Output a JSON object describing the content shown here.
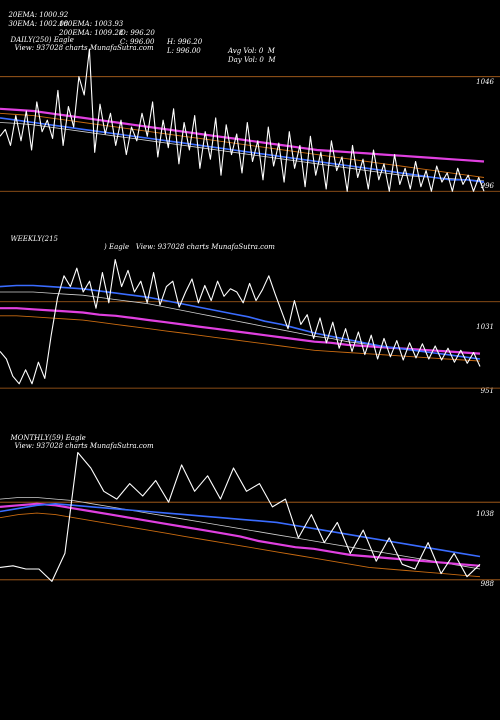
{
  "header": {
    "row1": [
      "20EMA: 1000.92",
      "100EMA: 1003.93",
      "O: 996.20",
      "H: 996.20",
      "Avg Vol: 0  M"
    ],
    "row2": [
      "30EMA: 1002.08",
      "200EMA: 1009.28",
      "C: 996.00",
      "L: 996.00",
      "Day Vol: 0  M"
    ]
  },
  "colors": {
    "background": "#000000",
    "price": "#ffffff",
    "ema_blue": "#3a6cff",
    "ema_magenta": "#e040e0",
    "ema_orange": "#c86a10",
    "ema_white": "#cfcfcf",
    "ref_line": "#b5651d"
  },
  "panels": [
    {
      "label_left": "DAILY(250) Eagle",
      "label_right": "View: 937028 charts MunafaSutra.com",
      "ticks": [
        "1046",
        "996"
      ]
    },
    {
      "label_left": "WEEKLY(215",
      "label_right": ") Eagle   View: 937028 charts MunafaSutra.com",
      "ticks": [
        "1031",
        "951"
      ]
    },
    {
      "label_left": "MONTHLY(59) Eagle",
      "label_right": "View: 937028 charts MunafaSutra.com",
      "ticks": [
        "1038",
        "988"
      ]
    }
  ],
  "chart_data": [
    {
      "type": "line",
      "ylim": [
        990,
        1062
      ],
      "ref_lines": [
        1046,
        996
      ],
      "series": [
        {
          "role": "price",
          "values": [
            1020,
            1023,
            1016,
            1029,
            1018,
            1031,
            1014,
            1035,
            1022,
            1027,
            1019,
            1040,
            1016,
            1033,
            1024,
            1046,
            1038,
            1058,
            1013,
            1034,
            1021,
            1030,
            1016,
            1027,
            1012,
            1024,
            1018,
            1030,
            1020,
            1035,
            1011,
            1027,
            1015,
            1032,
            1008,
            1026,
            1014,
            1029,
            1006,
            1022,
            1010,
            1028,
            1003,
            1025,
            1012,
            1021,
            1004,
            1026,
            1009,
            1018,
            1001,
            1024,
            1007,
            1017,
            1000,
            1022,
            1006,
            1016,
            998,
            1020,
            1003,
            1013,
            997,
            1018,
            1005,
            1011,
            996,
            1016,
            1002,
            1010,
            997,
            1014,
            1001,
            1008,
            996,
            1012,
            999,
            1006,
            997,
            1009,
            998,
            1005,
            996,
            1007,
            1000,
            1004,
            996,
            1006,
            999,
            1003,
            996,
            1002,
            996
          ]
        },
        {
          "role": "ema_blue",
          "values": [
            1028,
            1027,
            1026,
            1025,
            1024,
            1023,
            1022,
            1021,
            1020,
            1019,
            1018,
            1017,
            1016,
            1015,
            1014,
            1013,
            1012,
            1011,
            1010,
            1009,
            1008,
            1007,
            1006,
            1005,
            1004,
            1003,
            1002,
            1001,
            1001,
            1000
          ]
        },
        {
          "role": "ema_magenta",
          "values": [
            1032,
            1031.5,
            1031,
            1030,
            1029,
            1028,
            1027,
            1026,
            1025,
            1024,
            1023,
            1022,
            1021,
            1020,
            1019,
            1018,
            1017,
            1016,
            1015,
            1014,
            1013.5,
            1013,
            1012.5,
            1012,
            1011.5,
            1011,
            1010.5,
            1010,
            1009.5,
            1009
          ]
        },
        {
          "role": "ema_orange",
          "values": [
            1030,
            1029.5,
            1029,
            1028,
            1027,
            1026,
            1025,
            1024,
            1023,
            1022,
            1021,
            1020,
            1019,
            1018,
            1017,
            1016,
            1015,
            1014,
            1013,
            1012,
            1011,
            1010,
            1009,
            1008,
            1007,
            1006,
            1005,
            1004,
            1003,
            1002
          ]
        },
        {
          "role": "ema_white",
          "values": [
            1026,
            1025.6,
            1025,
            1024,
            1023,
            1022,
            1021,
            1020,
            1019,
            1018,
            1017,
            1016,
            1015,
            1014,
            1013,
            1012,
            1011,
            1010,
            1009,
            1008,
            1007,
            1006,
            1005,
            1004,
            1003,
            1002.5,
            1002,
            1001.5,
            1001,
            1000.5
          ]
        }
      ]
    },
    {
      "type": "line",
      "ylim": [
        940,
        1090
      ],
      "ref_lines": [
        1031,
        951
      ],
      "series": [
        {
          "role": "price",
          "values": [
            985,
            978,
            962,
            955,
            968,
            955,
            975,
            960,
            1000,
            1035,
            1055,
            1045,
            1062,
            1040,
            1050,
            1025,
            1058,
            1030,
            1070,
            1045,
            1060,
            1040,
            1050,
            1030,
            1058,
            1028,
            1045,
            1050,
            1026,
            1040,
            1052,
            1030,
            1046,
            1032,
            1050,
            1036,
            1043,
            1040,
            1030,
            1048,
            1032,
            1042,
            1055,
            1038,
            1022,
            1006,
            1032,
            1010,
            1019,
            997,
            1016,
            993,
            1012,
            988,
            1006,
            985,
            1003,
            982,
            1000,
            978,
            997,
            980,
            995,
            977,
            993,
            979,
            992,
            978,
            990,
            977,
            988,
            975,
            986,
            974,
            984,
            971
          ]
        },
        {
          "role": "ema_blue",
          "values": [
            1045,
            1046,
            1046,
            1045,
            1044,
            1043,
            1041,
            1039,
            1037,
            1035,
            1032,
            1029,
            1026,
            1023,
            1020,
            1017,
            1013,
            1010,
            1006,
            1002,
            999,
            996,
            993,
            990,
            988,
            986,
            984,
            982,
            980,
            978
          ]
        },
        {
          "role": "ema_magenta",
          "values": [
            1025,
            1025,
            1024,
            1023,
            1022,
            1021,
            1019,
            1018,
            1016,
            1014,
            1012,
            1010,
            1008,
            1006,
            1004,
            1002,
            1000,
            998,
            996,
            994,
            993,
            991,
            990,
            989,
            988,
            987,
            986,
            985,
            984,
            983
          ]
        },
        {
          "role": "ema_orange",
          "values": [
            1018,
            1018,
            1017,
            1016,
            1015,
            1014,
            1012,
            1010,
            1008,
            1006,
            1004,
            1002,
            1000,
            998,
            996,
            994,
            992,
            990,
            988,
            986,
            985,
            984,
            983,
            982,
            981,
            980,
            979,
            978,
            977,
            976
          ]
        },
        {
          "role": "ema_white",
          "values": [
            1040,
            1040,
            1040,
            1039,
            1038,
            1037,
            1035,
            1033,
            1031,
            1029,
            1026,
            1023,
            1020,
            1017,
            1014,
            1011,
            1008,
            1005,
            1002,
            999,
            997,
            994,
            992,
            990,
            988,
            986,
            984,
            982,
            980,
            978
          ]
        }
      ]
    },
    {
      "type": "line",
      "ylim": [
        975,
        1080
      ],
      "ref_lines": [
        1038,
        988
      ],
      "series": [
        {
          "role": "price",
          "values": [
            996,
            997,
            995,
            995,
            987,
            1005,
            1070,
            1060,
            1045,
            1040,
            1050,
            1042,
            1052,
            1038,
            1062,
            1045,
            1055,
            1040,
            1060,
            1045,
            1050,
            1035,
            1040,
            1015,
            1030,
            1012,
            1025,
            1005,
            1020,
            1000,
            1015,
            998,
            995,
            1012,
            992,
            1005,
            990,
            998
          ]
        },
        {
          "role": "ema_blue",
          "values": [
            1032,
            1034,
            1036,
            1037,
            1036,
            1035,
            1034,
            1033,
            1032,
            1031,
            1030,
            1029,
            1028,
            1027,
            1026,
            1025,
            1023,
            1021,
            1019,
            1017,
            1015,
            1013,
            1011,
            1009,
            1007,
            1005,
            1003
          ]
        },
        {
          "role": "ema_magenta",
          "values": [
            1035,
            1036,
            1037,
            1036,
            1034,
            1032,
            1030,
            1028,
            1026,
            1024,
            1022,
            1020,
            1018,
            1016,
            1013,
            1011,
            1009,
            1008,
            1006,
            1004,
            1003,
            1002,
            1001,
            1000,
            999,
            998,
            997
          ]
        },
        {
          "role": "ema_orange",
          "values": [
            1028,
            1030,
            1031,
            1030,
            1028,
            1026,
            1024,
            1022,
            1020,
            1018,
            1016,
            1014,
            1012,
            1010,
            1008,
            1006,
            1004,
            1002,
            1000,
            998,
            996,
            995,
            994,
            993,
            992,
            991,
            990
          ]
        },
        {
          "role": "ema_white",
          "values": [
            1040,
            1041,
            1041,
            1040,
            1039,
            1037,
            1035,
            1033,
            1031,
            1029,
            1027,
            1025,
            1023,
            1021,
            1019,
            1017,
            1015,
            1013,
            1011,
            1009,
            1007,
            1005,
            1003,
            1001,
            999,
            997,
            995
          ]
        }
      ]
    }
  ]
}
